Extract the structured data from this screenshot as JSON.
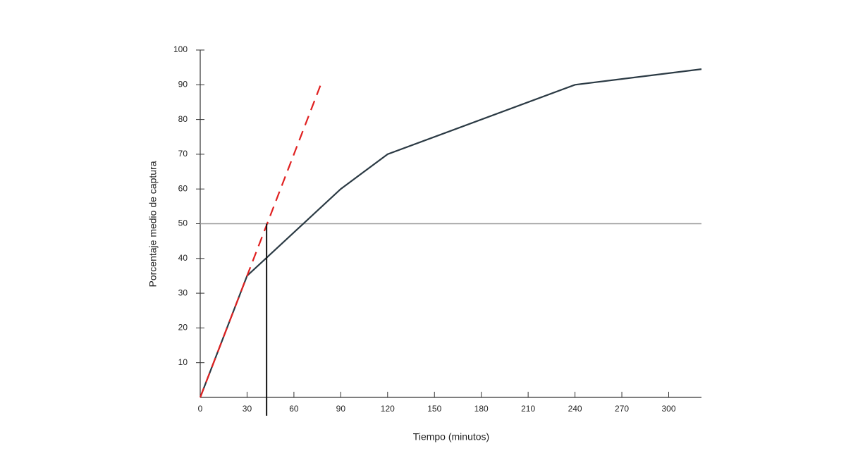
{
  "chart_data": {
    "type": "line",
    "x_label": "Tiempo (minutos)",
    "y_label": "Porcentaje medio de captura",
    "xlim": [
      0,
      321
    ],
    "ylim": [
      0,
      100
    ],
    "xticks": [
      0,
      30,
      60,
      90,
      120,
      150,
      180,
      210,
      240,
      270,
      300
    ],
    "yticks": [
      10,
      20,
      30,
      40,
      50,
      60,
      70,
      80,
      90,
      100
    ],
    "series": [
      {
        "color": "#2b3a44",
        "dashed": false,
        "x": [
          0,
          30,
          90,
          120,
          240,
          321
        ],
        "values": [
          0,
          35,
          60,
          70,
          90,
          94.5
        ]
      },
      {
        "color": "#e02020",
        "dashed": true,
        "x": [
          0,
          78
        ],
        "values": [
          0,
          91
        ]
      }
    ],
    "hline": {
      "value": 50,
      "color": "#999999"
    },
    "vline": {
      "x": 42.5,
      "y": 50,
      "color": "#111111"
    }
  }
}
